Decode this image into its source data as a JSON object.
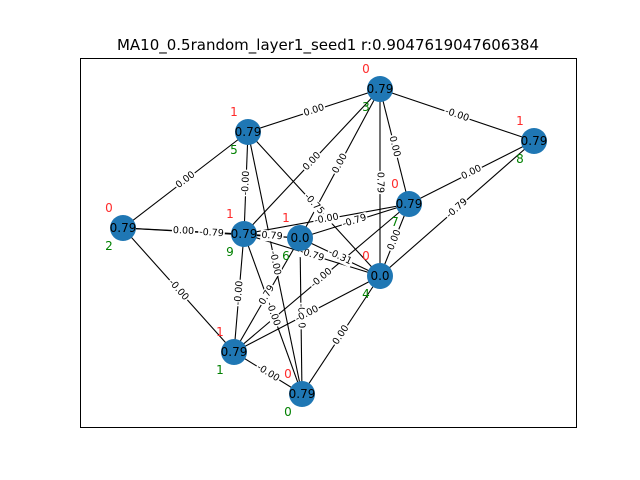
{
  "title": "MA10_0.5random_layer1_seed1  r:0.9047619047606384",
  "colors": {
    "node": "#1f77b4",
    "edge": "#000000",
    "top_label": "#ff2a2a",
    "bottom_label": "#008000"
  },
  "nodes": [
    {
      "id": "0",
      "value": "0.79",
      "top": "0"
    },
    {
      "id": "1",
      "value": "0.79",
      "top": "1"
    },
    {
      "id": "2",
      "value": "0.79",
      "top": "0"
    },
    {
      "id": "3",
      "value": "0.79",
      "top": "0"
    },
    {
      "id": "4",
      "value": "0.0",
      "top": "0"
    },
    {
      "id": "5",
      "value": "0.79",
      "top": "1"
    },
    {
      "id": "6",
      "value": "0.0",
      "top": "1"
    },
    {
      "id": "7",
      "value": "0.79",
      "top": "0"
    },
    {
      "id": "8",
      "value": "0.79",
      "top": "1"
    },
    {
      "id": "9",
      "value": "0.79",
      "top": "1"
    }
  ],
  "edges": [
    {
      "source": "2",
      "target": "5",
      "label": "0.00"
    },
    {
      "source": "2",
      "target": "9",
      "label": "0.00"
    },
    {
      "source": "2",
      "target": "6",
      "label": "-0.79"
    },
    {
      "source": "2",
      "target": "1",
      "label": "-0.00"
    },
    {
      "source": "5",
      "target": "3",
      "label": "0.00"
    },
    {
      "source": "5",
      "target": "9",
      "label": "-0.00"
    },
    {
      "source": "5",
      "target": "4",
      "label": "-0.75"
    },
    {
      "source": "5",
      "target": "0",
      "label": "-0.00"
    },
    {
      "source": "3",
      "target": "8",
      "label": "-0.00"
    },
    {
      "source": "3",
      "target": "9",
      "label": "0.00"
    },
    {
      "source": "3",
      "target": "6",
      "label": "0.00"
    },
    {
      "source": "3",
      "target": "7",
      "label": "0.00"
    },
    {
      "source": "3",
      "target": "4",
      "label": "0.79"
    },
    {
      "source": "8",
      "target": "7",
      "label": "0.00"
    },
    {
      "source": "8",
      "target": "4",
      "label": "-0.79"
    },
    {
      "source": "9",
      "target": "7",
      "label": "-0.00"
    },
    {
      "source": "9",
      "target": "6",
      "label": "0.79"
    },
    {
      "source": "9",
      "target": "4",
      "label": "-0.79"
    },
    {
      "source": "9",
      "target": "1",
      "label": "-0.00"
    },
    {
      "source": "9",
      "target": "0",
      "label": "-0.00"
    },
    {
      "source": "6",
      "target": "7",
      "label": "-0.79"
    },
    {
      "source": "6",
      "target": "4",
      "label": "-0.31"
    },
    {
      "source": "6",
      "target": "1",
      "label": "0.79"
    },
    {
      "source": "6",
      "target": "0",
      "label": "-0.00"
    },
    {
      "source": "7",
      "target": "4",
      "label": "0.00"
    },
    {
      "source": "7",
      "target": "1",
      "label": "-0.00"
    },
    {
      "source": "4",
      "target": "1",
      "label": "-0.00"
    },
    {
      "source": "4",
      "target": "0",
      "label": "0.00"
    },
    {
      "source": "1",
      "target": "0",
      "label": "-0.00"
    }
  ]
}
